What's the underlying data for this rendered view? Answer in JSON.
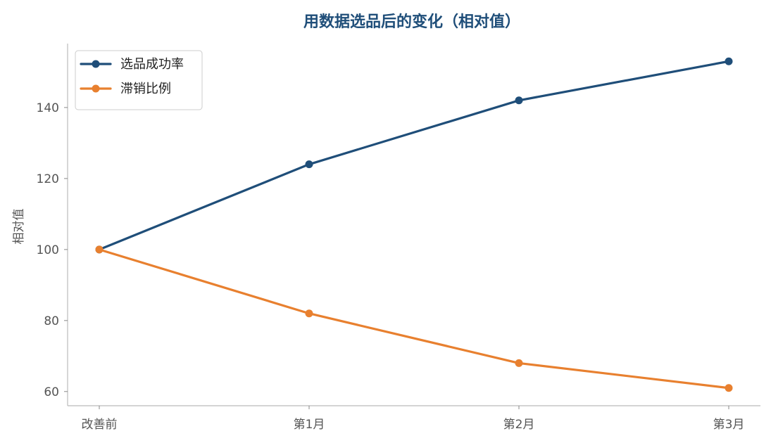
{
  "chart_data": {
    "type": "line",
    "title": "用数据选品后的变化（相对值）",
    "xlabel": "",
    "ylabel": "相对值",
    "categories": [
      "改善前",
      "第1月",
      "第2月",
      "第3月"
    ],
    "ylim": [
      56,
      158
    ],
    "yticks": [
      60,
      80,
      100,
      120,
      140
    ],
    "grid": false,
    "legend_position": "top-left",
    "series": [
      {
        "name": "选品成功率",
        "values": [
          100,
          124,
          142,
          153
        ],
        "color": "#1f4e79"
      },
      {
        "name": "滞销比例",
        "values": [
          100,
          82,
          68,
          61
        ],
        "color": "#e8802f"
      }
    ],
    "colors": {
      "title": "#1f4e79",
      "axis": "#bbbbbb",
      "legend_border": "#cccccc"
    }
  }
}
